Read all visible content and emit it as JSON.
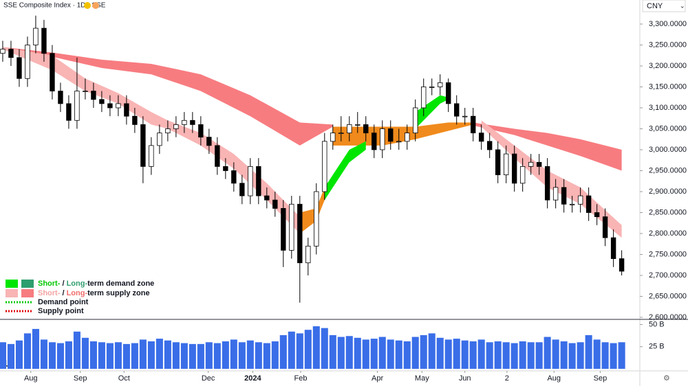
{
  "chart_data": {
    "type": "candlestick",
    "title": "SSE Composite Index · 1D · SSE",
    "currency": "CNY",
    "x": [
      0,
      1,
      2,
      3,
      4,
      5,
      6,
      7,
      8,
      9,
      10,
      11,
      12,
      13,
      14,
      15,
      16,
      17,
      18,
      19,
      20,
      21,
      22,
      23,
      24,
      25,
      26,
      27,
      28,
      29,
      30,
      31,
      32,
      33,
      34,
      35,
      36,
      37,
      38,
      39,
      40,
      41,
      42,
      43,
      44,
      45,
      46,
      47,
      48,
      49,
      50,
      51,
      52,
      53,
      54,
      55,
      56,
      57,
      58,
      59,
      60,
      61,
      62,
      63,
      64,
      65,
      66,
      67,
      68,
      69,
      70,
      71,
      72,
      73,
      74,
      75
    ],
    "open": [
      3230,
      3240,
      3220,
      3170,
      3250,
      3290,
      3230,
      3140,
      3110,
      3070,
      3140,
      3140,
      3120,
      3110,
      3100,
      3110,
      3080,
      3060,
      2960,
      3010,
      3040,
      3050,
      3060,
      3070,
      3060,
      3030,
      3010,
      2960,
      2950,
      2920,
      2890,
      2960,
      2890,
      2880,
      2860,
      2760,
      2870,
      2730,
      2770,
      2900,
      3020,
      3040,
      3040,
      3060,
      3060,
      3040,
      3000,
      3050,
      3020,
      3020,
      3040,
      3100,
      3150,
      3150,
      3160,
      3110,
      3080,
      3080,
      3040,
      3020,
      3000,
      2940,
      2990,
      2920,
      2960,
      2970,
      2960,
      2880,
      2910,
      2870,
      2870,
      2890,
      2850,
      2840,
      2790,
      2740
    ],
    "high": [
      3260,
      3260,
      3240,
      3270,
      3320,
      3310,
      3250,
      3160,
      3130,
      3220,
      3170,
      3160,
      3140,
      3130,
      3130,
      3130,
      3100,
      3080,
      3030,
      3060,
      3070,
      3080,
      3090,
      3090,
      3080,
      3050,
      3030,
      2980,
      2970,
      2940,
      2980,
      2980,
      2910,
      2900,
      2880,
      2890,
      2890,
      2790,
      2920,
      3040,
      3060,
      3080,
      3080,
      3090,
      3080,
      3060,
      3070,
      3070,
      3050,
      3060,
      3120,
      3170,
      3170,
      3180,
      3170,
      3130,
      3100,
      3100,
      3060,
      3040,
      3020,
      3010,
      3010,
      2980,
      2990,
      2990,
      2980,
      2930,
      2930,
      2890,
      2910,
      2910,
      2870,
      2860,
      2810,
      2760
    ],
    "low": [
      3210,
      3200,
      3150,
      3150,
      3230,
      3210,
      3120,
      3090,
      3050,
      3050,
      3120,
      3100,
      3090,
      3080,
      3080,
      3060,
      3040,
      2920,
      2940,
      2990,
      3020,
      3030,
      3040,
      3040,
      3010,
      2990,
      2940,
      2930,
      2900,
      2870,
      2870,
      2870,
      2860,
      2840,
      2720,
      2740,
      2635,
      2700,
      2750,
      2880,
      3000,
      3020,
      3020,
      3040,
      3020,
      2980,
      2980,
      3000,
      3000,
      3000,
      3020,
      3080,
      3130,
      3130,
      3090,
      3060,
      3060,
      3020,
      3000,
      2980,
      2920,
      2920,
      2900,
      2900,
      2940,
      2940,
      2860,
      2860,
      2850,
      2850,
      2850,
      2830,
      2820,
      2770,
      2720,
      2700
    ],
    "close": [
      3240,
      3220,
      3170,
      3250,
      3290,
      3230,
      3140,
      3110,
      3070,
      3140,
      3140,
      3120,
      3110,
      3100,
      3110,
      3080,
      3060,
      2960,
      3010,
      3040,
      3050,
      3060,
      3070,
      3060,
      3030,
      3010,
      2960,
      2950,
      2920,
      2890,
      2960,
      2890,
      2880,
      2860,
      2760,
      2870,
      2730,
      2770,
      2900,
      3020,
      3040,
      3040,
      3060,
      3060,
      3040,
      3000,
      3050,
      3020,
      3020,
      3040,
      3100,
      3150,
      3150,
      3160,
      3110,
      3080,
      3080,
      3040,
      3020,
      3000,
      2940,
      2990,
      2920,
      2960,
      2970,
      2960,
      2880,
      2910,
      2870,
      2870,
      2890,
      2850,
      2840,
      2790,
      2740,
      2710
    ],
    "volume": [
      30,
      28,
      32,
      40,
      45,
      33,
      30,
      29,
      31,
      42,
      35,
      31,
      30,
      29,
      30,
      28,
      29,
      33,
      31,
      34,
      32,
      30,
      29,
      28,
      28,
      30,
      29,
      31,
      33,
      30,
      32,
      30,
      29,
      31,
      38,
      42,
      40,
      44,
      48,
      46,
      38,
      36,
      37,
      35,
      33,
      34,
      36,
      33,
      32,
      31,
      36,
      38,
      40,
      35,
      33,
      34,
      32,
      31,
      33,
      30,
      31,
      30,
      29,
      31,
      30,
      30,
      36,
      33,
      31,
      29,
      30,
      38,
      33,
      30,
      29,
      30
    ],
    "up_color": "#ffffff",
    "down_color": "#000000",
    "volume_color": "#3a6ee8",
    "xlim": [
      -0.33,
      77.2
    ],
    "ylim": [
      2600,
      3312
    ],
    "vlim": [
      0,
      55
    ],
    "xticks": [
      {
        "value": 3.4,
        "label": "Aug"
      },
      {
        "value": 9.4,
        "label": "Sep"
      },
      {
        "value": 14.7,
        "label": "Oct"
      },
      {
        "value": 24.9,
        "label": "Dec"
      },
      {
        "value": 30.3,
        "label": "2024"
      },
      {
        "value": 36.1,
        "label": "Feb"
      },
      {
        "value": 45.4,
        "label": "Apr"
      },
      {
        "value": 50.8,
        "label": "May"
      },
      {
        "value": 56,
        "label": "Jun"
      },
      {
        "value": 61.1,
        "label": "2"
      },
      {
        "value": 66.8,
        "label": "Aug"
      },
      {
        "value": 72.4,
        "label": "Sep"
      }
    ],
    "yticks": [
      {
        "value": 2600,
        "label": "2,600.0000"
      },
      {
        "value": 2650,
        "label": "2,650.0000"
      },
      {
        "value": 2700,
        "label": "2,700.0000"
      },
      {
        "value": 2750,
        "label": "2,750.0000"
      },
      {
        "value": 2800,
        "label": "2,800.0000"
      },
      {
        "value": 2850,
        "label": "2,850.0000"
      },
      {
        "value": 2900,
        "label": "2,900.0000"
      },
      {
        "value": 2950,
        "label": "2,950.0000"
      },
      {
        "value": 3000,
        "label": "3,000.0000"
      },
      {
        "value": 3050,
        "label": "3,050.0000"
      },
      {
        "value": 3100,
        "label": "3,100.0000"
      },
      {
        "value": 3150,
        "label": "3,150.0000"
      },
      {
        "value": 3200,
        "label": "3,200.0000"
      },
      {
        "value": 3250,
        "label": "3,250.0000"
      },
      {
        "value": 3300,
        "label": "3,300.0000"
      }
    ],
    "vticks": [
      {
        "value": 50,
        "label": "50 B"
      },
      {
        "value": 25,
        "label": "25 B"
      }
    ],
    "zones": [
      {
        "color": "#f77c80",
        "x": [
          0,
          6,
          12,
          18,
          24,
          30,
          36,
          40
        ],
        "upper": [
          3245,
          3232,
          3215,
          3205,
          3180,
          3130,
          3065,
          3060
        ],
        "lower": [
          3238,
          3222,
          3195,
          3180,
          3140,
          3080,
          3010,
          3055
        ]
      },
      {
        "color": "#f77c80",
        "x": [
          57,
          62,
          66,
          70,
          75
        ],
        "upper": [
          3065,
          3050,
          3040,
          3025,
          3000
        ],
        "lower": [
          3058,
          3035,
          3010,
          2985,
          2950
        ]
      },
      {
        "color": "#f08a1c",
        "x": [
          40,
          46,
          50,
          54,
          57
        ],
        "upper": [
          3055,
          3055,
          3055,
          3065,
          3065
        ],
        "lower": [
          3010,
          3010,
          3025,
          3045,
          3060
        ]
      },
      {
        "color": "#f9b4b4",
        "x": [
          0,
          6,
          10,
          14,
          18,
          20,
          24,
          28,
          32,
          36
        ],
        "upper": [
          3245,
          3225,
          3170,
          3135,
          3090,
          3070,
          3040,
          2990,
          2920,
          2840
        ],
        "lower": [
          3240,
          3190,
          3140,
          3110,
          3060,
          3050,
          3010,
          2955,
          2880,
          2800
        ]
      },
      {
        "color": "#f9b4b4",
        "x": [
          58,
          62,
          66,
          70,
          75
        ],
        "upper": [
          3070,
          3010,
          2950,
          2910,
          2820
        ],
        "lower": [
          3055,
          2980,
          2910,
          2870,
          2790
        ]
      },
      {
        "color": "#f08a1c",
        "x": [
          36,
          38,
          39
        ],
        "upper": [
          2850,
          2860,
          2910
        ],
        "lower": [
          2800,
          2830,
          2880
        ]
      },
      {
        "color": "#00e600",
        "x": [
          39,
          42,
          44
        ],
        "upper": [
          2910,
          3000,
          3020
        ],
        "lower": [
          2880,
          2970,
          3000
        ]
      },
      {
        "color": "#00e600",
        "x": [
          50,
          53,
          54
        ],
        "upper": [
          3090,
          3130,
          3125
        ],
        "lower": [
          3050,
          3110,
          3120
        ]
      }
    ],
    "legend": [
      {
        "swatches": [
          "#00e600",
          "#2e9e6e"
        ],
        "parts": [
          "Short-",
          " / ",
          "Long-",
          "term demand zone"
        ],
        "part_colors": [
          "#00c800",
          "#131722",
          "#2e9e6e",
          "#131722"
        ]
      },
      {
        "swatches": [
          "#f9b4b4",
          "#f77c80"
        ],
        "parts": [
          "Short-",
          " / ",
          "Long-",
          "term supply zone"
        ],
        "part_colors": [
          "#f4a3a3",
          "#131722",
          "#f26b6b",
          "#131722"
        ]
      },
      {
        "line_color": "#00c800",
        "label": "Demand point"
      },
      {
        "line_color": "#e00000",
        "label": "Supply point"
      }
    ]
  }
}
